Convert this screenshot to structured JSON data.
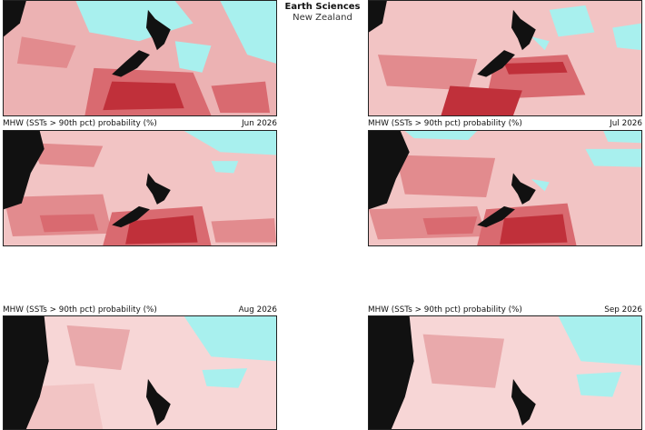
{
  "branding": {
    "line1": "Earth Sciences",
    "line2": "New Zealand"
  },
  "caption_label": "MHW (SSTs > 90th pct) probability (%)",
  "panels": [
    {
      "date": "Jun 2026"
    },
    {
      "date": "Jul 2026"
    },
    {
      "date": "Aug 2026"
    },
    {
      "date": "Sep 2026"
    },
    {
      "date": ""
    },
    {
      "date": ""
    }
  ],
  "colors": {
    "cyan": "#a8f0ee",
    "white": "#fbf0f0",
    "pink_light": "#f2c4c4",
    "pink": "#e79a9c",
    "red": "#d9676c",
    "red_dark": "#c02a32",
    "land": "#111111"
  }
}
